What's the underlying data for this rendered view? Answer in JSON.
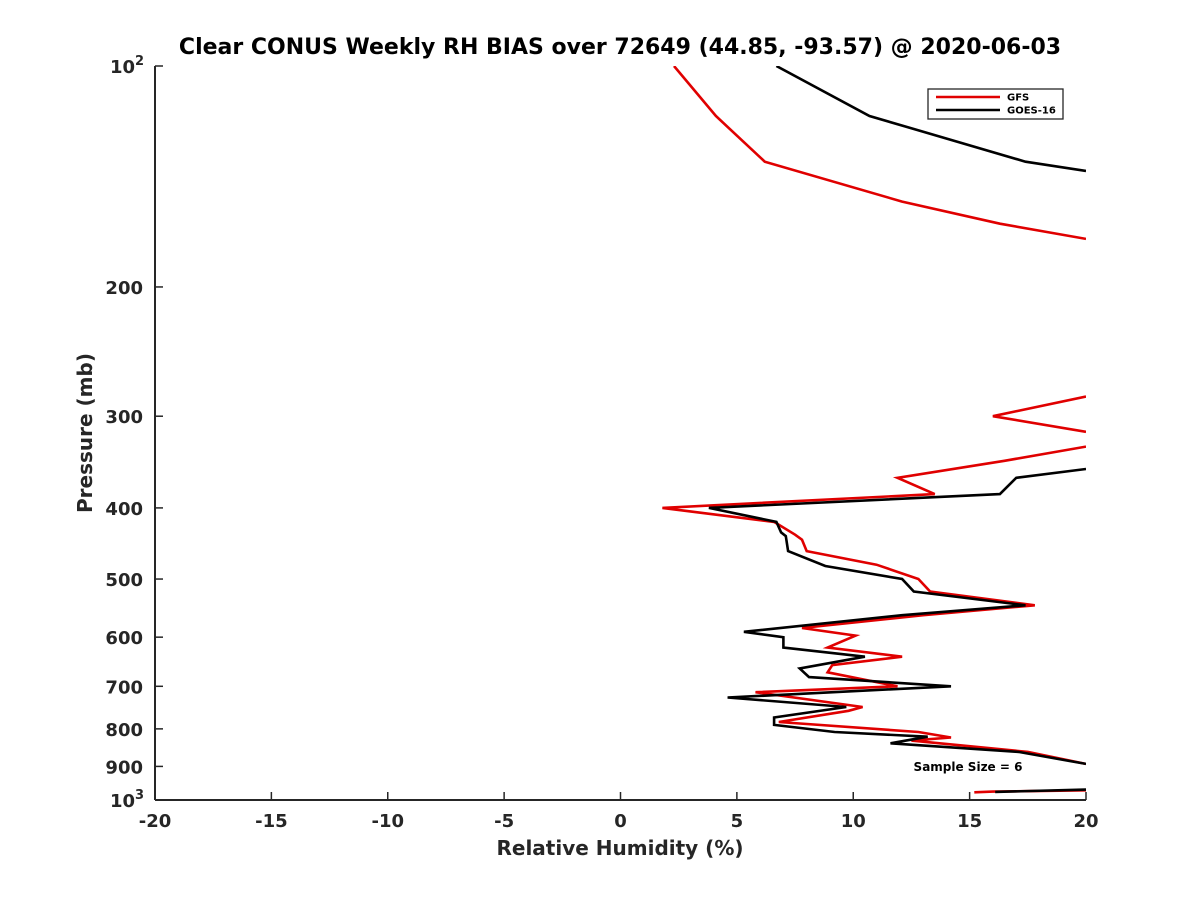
{
  "chart_data": {
    "type": "line",
    "title": "Clear CONUS Weekly RH BIAS over 72649 (44.85, -93.57) @ 2020-06-03",
    "xlabel": "Relative Humidity (%)",
    "ylabel": "Pressure (mb)",
    "xlim": [
      -20,
      20
    ],
    "ylim": [
      100,
      1000
    ],
    "yscale": "log",
    "y_reversed": true,
    "grid": false,
    "legend_position": "top-right",
    "x_ticks": [
      -20,
      -15,
      -10,
      -5,
      0,
      5,
      10,
      15,
      20
    ],
    "x_tick_labels": [
      "-20",
      "-15",
      "-10",
      "-5",
      "0",
      "5",
      "10",
      "15",
      "20"
    ],
    "y_ticks": [
      100,
      200,
      300,
      400,
      500,
      600,
      700,
      800,
      900,
      1000
    ],
    "y_tick_labels": [
      {
        "base": "10",
        "sup": "2"
      },
      {
        "base": "200",
        "sup": ""
      },
      {
        "base": "300",
        "sup": ""
      },
      {
        "base": "400",
        "sup": ""
      },
      {
        "base": "500",
        "sup": ""
      },
      {
        "base": "600",
        "sup": ""
      },
      {
        "base": "700",
        "sup": ""
      },
      {
        "base": "800",
        "sup": ""
      },
      {
        "base": "900",
        "sup": ""
      },
      {
        "base": "10",
        "sup": "3"
      }
    ],
    "annotation": "Sample Size = 6",
    "series": [
      {
        "name": "GFS",
        "color": "#e00000",
        "segments": [
          [
            [
              2.3,
              100
            ],
            [
              4.1,
              117
            ],
            [
              6.2,
              135
            ],
            [
              12.1,
              153
            ],
            [
              16.3,
              164
            ],
            [
              20,
              172
            ]
          ],
          [
            [
              20,
              282
            ],
            [
              16.0,
              300
            ],
            [
              20,
              315
            ]
          ],
          [
            [
              20,
              330
            ],
            [
              16.5,
              345
            ],
            [
              11.9,
              364
            ],
            [
              13.5,
              383
            ],
            [
              1.8,
              400
            ],
            [
              6.6,
              418
            ],
            [
              7.5,
              435
            ],
            [
              7.8,
              442
            ],
            [
              8.0,
              458
            ],
            [
              11.0,
              478
            ],
            [
              12.8,
              500
            ],
            [
              13.3,
              520
            ],
            [
              17.8,
              543
            ],
            [
              13.0,
              560
            ],
            [
              7.8,
              583
            ],
            [
              10.1,
              597
            ],
            [
              8.9,
              620
            ],
            [
              12.1,
              638
            ],
            [
              9.1,
              655
            ],
            [
              8.9,
              670
            ],
            [
              11.9,
              700
            ],
            [
              5.8,
              713
            ],
            [
              10.4,
              747
            ],
            [
              9.8,
              756
            ],
            [
              6.8,
              783
            ],
            [
              12.8,
              808
            ],
            [
              14.2,
              822
            ],
            [
              12.5,
              830
            ],
            [
              17.5,
              860
            ],
            [
              20,
              893
            ]
          ],
          [
            [
              15.2,
              976
            ],
            [
              16.0,
              974
            ],
            [
              20,
              970
            ]
          ]
        ]
      },
      {
        "name": "GOES-16",
        "color": "#000000",
        "segments": [
          [
            [
              6.7,
              100
            ],
            [
              10.7,
              117
            ],
            [
              17.4,
              135
            ],
            [
              20,
              139
            ]
          ],
          [
            [
              20,
              354
            ],
            [
              17.0,
              364
            ],
            [
              16.3,
              383
            ],
            [
              3.8,
              400
            ],
            [
              6.7,
              418
            ],
            [
              6.9,
              432
            ],
            [
              7.1,
              437
            ],
            [
              7.2,
              458
            ],
            [
              8.8,
              480
            ],
            [
              12.1,
              500
            ],
            [
              12.6,
              520
            ],
            [
              17.4,
              543
            ],
            [
              12.1,
              560
            ],
            [
              5.3,
              590
            ],
            [
              7.0,
              600
            ],
            [
              7.0,
              620
            ],
            [
              10.5,
              638
            ],
            [
              7.7,
              662
            ],
            [
              8.1,
              680
            ],
            [
              14.2,
              700
            ],
            [
              4.6,
              725
            ],
            [
              9.7,
              747
            ],
            [
              6.6,
              772
            ],
            [
              6.6,
              790
            ],
            [
              9.2,
              808
            ],
            [
              13.2,
              820
            ],
            [
              11.6,
              837
            ],
            [
              17.1,
              860
            ],
            [
              20,
              893
            ]
          ],
          [
            [
              16.1,
              975
            ],
            [
              20,
              968
            ]
          ]
        ]
      }
    ]
  }
}
